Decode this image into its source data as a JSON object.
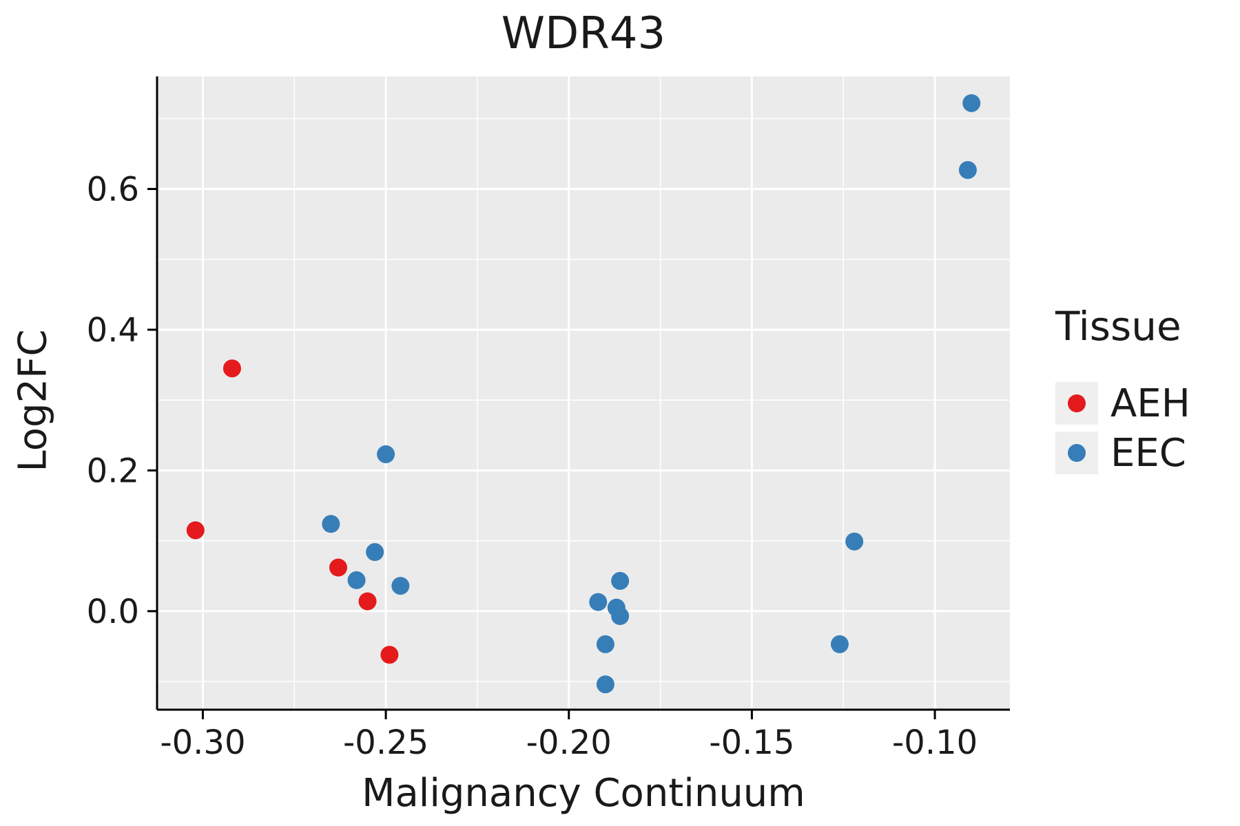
{
  "chart_data": {
    "type": "scatter",
    "title": "WDR43",
    "xlabel": "Malignancy Continuum",
    "ylabel": "Log2FC",
    "legend_title": "Tissue",
    "legend_position": "right",
    "panel_bg": "#EBEBEB",
    "grid": true,
    "grid_color": "#FFFFFF",
    "axis_color": "#000000",
    "text_color": "#1A1A1A",
    "xlim": [
      -0.3125,
      -0.0795
    ],
    "ylim": [
      -0.14,
      0.76
    ],
    "x_ticks": {
      "values": [
        -0.3,
        -0.25,
        -0.2,
        -0.15,
        -0.1
      ],
      "labels": [
        "-0.30",
        "-0.25",
        "-0.20",
        "-0.15",
        "-0.10"
      ],
      "minor": [
        -0.275,
        -0.225,
        -0.175,
        -0.125
      ]
    },
    "y_ticks": {
      "values": [
        0.0,
        0.2,
        0.4,
        0.6
      ],
      "labels": [
        "0.0",
        "0.2",
        "0.4",
        "0.6"
      ],
      "minor": [
        -0.1,
        0.1,
        0.3,
        0.5,
        0.7
      ]
    },
    "series": [
      {
        "name": "AEH",
        "color": "#E41A1C",
        "points": [
          [
            -0.302,
            0.115
          ],
          [
            -0.292,
            0.345
          ],
          [
            -0.263,
            0.062
          ],
          [
            -0.255,
            0.014
          ],
          [
            -0.249,
            -0.062
          ]
        ]
      },
      {
        "name": "EEC",
        "color": "#377EB8",
        "points": [
          [
            -0.265,
            0.124
          ],
          [
            -0.258,
            0.044
          ],
          [
            -0.253,
            0.084
          ],
          [
            -0.25,
            0.223
          ],
          [
            -0.246,
            0.036
          ],
          [
            -0.192,
            0.013
          ],
          [
            -0.19,
            -0.047
          ],
          [
            -0.19,
            -0.104
          ],
          [
            -0.187,
            0.005
          ],
          [
            -0.186,
            0.043
          ],
          [
            -0.186,
            -0.007
          ],
          [
            -0.126,
            -0.047
          ],
          [
            -0.122,
            0.099
          ],
          [
            -0.091,
            0.627
          ],
          [
            -0.09,
            0.722
          ]
        ]
      }
    ]
  }
}
